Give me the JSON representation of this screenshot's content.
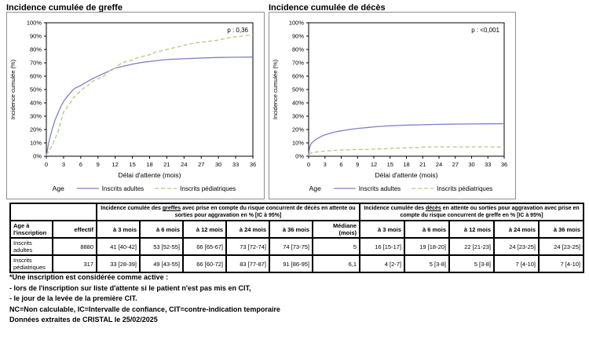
{
  "chart_data": [
    {
      "type": "line",
      "title": "Incidence cumulée de greffe",
      "p_label": "p : 0,36",
      "xlabel": "Délai d'attente (mois)",
      "ylabel": "Incidence cumulée (%)",
      "legend_title": "Age",
      "xlim": [
        0,
        36
      ],
      "ylim": [
        0,
        100
      ],
      "xticks": [
        0,
        3,
        6,
        9,
        12,
        15,
        18,
        21,
        24,
        27,
        30,
        33,
        36
      ],
      "yticks": [
        "0%",
        "10%",
        "20%",
        "30%",
        "40%",
        "50%",
        "60%",
        "70%",
        "80%",
        "90%",
        "100%"
      ],
      "grid": false,
      "legend_position": "bottom",
      "series": [
        {
          "name": "Inscrits adultes",
          "color": "#7e80c4",
          "dash": "solid",
          "points": [
            [
              0,
              0
            ],
            [
              0.2,
              5
            ],
            [
              0.4,
              10
            ],
            [
              0.7,
              15
            ],
            [
              1,
              20
            ],
            [
              1.5,
              27
            ],
            [
              2,
              32
            ],
            [
              2.5,
              37
            ],
            [
              3,
              41
            ],
            [
              3.5,
              44
            ],
            [
              4,
              46.5
            ],
            [
              4.5,
              49
            ],
            [
              5,
              51
            ],
            [
              6,
              53
            ],
            [
              7,
              55.5
            ],
            [
              8,
              58
            ],
            [
              9,
              60
            ],
            [
              10,
              62
            ],
            [
              11,
              64
            ],
            [
              12,
              66
            ],
            [
              13,
              67
            ],
            [
              14,
              68
            ],
            [
              15,
              69
            ],
            [
              16,
              69.8
            ],
            [
              17,
              70.5
            ],
            [
              18,
              71
            ],
            [
              19,
              71.5
            ],
            [
              20,
              72
            ],
            [
              21,
              72.4
            ],
            [
              22,
              72.7
            ],
            [
              23,
              72.9
            ],
            [
              24,
              73
            ],
            [
              26,
              73.4
            ],
            [
              28,
              73.7
            ],
            [
              30,
              74
            ],
            [
              33,
              74.2
            ],
            [
              36,
              74.3
            ]
          ]
        },
        {
          "name": "Inscrits pédiatriques",
          "color": "#b5c97e",
          "dash": "dashed",
          "points": [
            [
              0,
              1
            ],
            [
              0.5,
              4
            ],
            [
              1,
              8
            ],
            [
              1.3,
              11
            ],
            [
              1.6,
              14
            ],
            [
              2,
              18
            ],
            [
              2.3,
              22
            ],
            [
              2.6,
              27
            ],
            [
              3,
              33
            ],
            [
              3.4,
              35
            ],
            [
              3.8,
              38
            ],
            [
              4.2,
              40
            ],
            [
              4.6,
              43
            ],
            [
              5,
              45
            ],
            [
              5.5,
              47
            ],
            [
              6,
              49
            ],
            [
              6.5,
              51
            ],
            [
              7,
              52
            ],
            [
              7.5,
              54
            ],
            [
              8,
              56
            ],
            [
              8.5,
              57
            ],
            [
              9,
              58
            ],
            [
              9.5,
              59
            ],
            [
              10,
              60
            ],
            [
              10.5,
              62
            ],
            [
              11,
              64
            ],
            [
              11.5,
              65
            ],
            [
              12,
              66
            ],
            [
              12.5,
              68
            ],
            [
              13,
              69.5
            ],
            [
              13.5,
              70.5
            ],
            [
              14,
              71
            ],
            [
              15,
              72
            ],
            [
              15.5,
              73
            ],
            [
              16,
              74
            ],
            [
              17,
              75
            ],
            [
              18,
              76
            ],
            [
              18.5,
              77
            ],
            [
              19,
              78
            ],
            [
              20,
              79
            ],
            [
              21,
              80
            ],
            [
              22,
              81
            ],
            [
              23,
              82
            ],
            [
              24,
              83
            ],
            [
              25,
              84
            ],
            [
              26,
              85
            ],
            [
              27,
              85.5
            ],
            [
              28,
              86
            ],
            [
              29,
              86.5
            ],
            [
              30,
              87
            ],
            [
              31,
              88
            ],
            [
              32,
              89
            ],
            [
              33,
              89.5
            ],
            [
              34,
              90
            ],
            [
              35,
              90.5
            ],
            [
              36,
              91
            ]
          ]
        }
      ]
    },
    {
      "type": "line",
      "title": "Incidence cumulée de décès",
      "p_label": "p : <0,001",
      "xlabel": "Délai d'attente (mois)",
      "ylabel": "Incidence cumulée (%)",
      "legend_title": "Age",
      "xlim": [
        0,
        36
      ],
      "ylim": [
        0,
        100
      ],
      "xticks": [
        0,
        3,
        6,
        9,
        12,
        15,
        18,
        21,
        24,
        27,
        30,
        33,
        36
      ],
      "yticks": [
        "0%",
        "10%",
        "20%",
        "30%",
        "40%",
        "50%",
        "60%",
        "70%",
        "80%",
        "90%",
        "100%"
      ],
      "grid": false,
      "legend_position": "bottom",
      "series": [
        {
          "name": "Inscrits adultes",
          "color": "#7e80c4",
          "dash": "solid",
          "points": [
            [
              0,
              0
            ],
            [
              0.1,
              4
            ],
            [
              0.2,
              7
            ],
            [
              0.4,
              9
            ],
            [
              0.6,
              10
            ],
            [
              1,
              11.5
            ],
            [
              1.5,
              13
            ],
            [
              2,
              14.2
            ],
            [
              2.5,
              15.2
            ],
            [
              3,
              16
            ],
            [
              3.5,
              16.6
            ],
            [
              4,
              17.2
            ],
            [
              4.5,
              17.8
            ],
            [
              5,
              18.3
            ],
            [
              5.5,
              18.7
            ],
            [
              6,
              19
            ],
            [
              7,
              19.7
            ],
            [
              8,
              20.3
            ],
            [
              9,
              20.8
            ],
            [
              10,
              21.2
            ],
            [
              11,
              21.6
            ],
            [
              12,
              22
            ],
            [
              13,
              22.3
            ],
            [
              14,
              22.6
            ],
            [
              15,
              22.8
            ],
            [
              16,
              23
            ],
            [
              17,
              23.1
            ],
            [
              18,
              23.3
            ],
            [
              19,
              23.4
            ],
            [
              20,
              23.5
            ],
            [
              21,
              23.6
            ],
            [
              22,
              23.7
            ],
            [
              23,
              23.8
            ],
            [
              24,
              23.9
            ],
            [
              26,
              24
            ],
            [
              28,
              24.1
            ],
            [
              30,
              24.2
            ],
            [
              33,
              24.3
            ],
            [
              36,
              24.4
            ]
          ]
        },
        {
          "name": "Inscrits pédiatriques",
          "color": "#b5c97e",
          "dash": "dashed",
          "points": [
            [
              0,
              2
            ],
            [
              0.5,
              2.5
            ],
            [
              1,
              3
            ],
            [
              2,
              3.4
            ],
            [
              3,
              3.8
            ],
            [
              4,
              4.1
            ],
            [
              5,
              4.4
            ],
            [
              6,
              4.6
            ],
            [
              7,
              4.8
            ],
            [
              8,
              5
            ],
            [
              9,
              5
            ],
            [
              10,
              5.1
            ],
            [
              11,
              5.2
            ],
            [
              12,
              5.3
            ],
            [
              13,
              5.5
            ],
            [
              14,
              5.6
            ],
            [
              15,
              5.8
            ],
            [
              16,
              6
            ],
            [
              17,
              6.1
            ],
            [
              18,
              6.3
            ],
            [
              19,
              6.4
            ],
            [
              20,
              6.5
            ],
            [
              21,
              6.9
            ],
            [
              22,
              7
            ],
            [
              24,
              7
            ],
            [
              26,
              7
            ],
            [
              28,
              7
            ],
            [
              30,
              7
            ],
            [
              32,
              7
            ],
            [
              34,
              7
            ],
            [
              36,
              7
            ]
          ]
        }
      ]
    }
  ],
  "table": {
    "group1": {
      "pre": "Incidence cumulée des ",
      "u": "greffes",
      "post": " avec prise en compte du risque concurrent de décès en attente ou sorties pour aggravation en % [IC à 95%]"
    },
    "group2": {
      "pre": "Incidence cumulée des ",
      "u": "décès",
      "post": " en attente ou sorties pour aggravation avec prise en compte du risque concurrent de greffe en % [IC à 95%]"
    },
    "columns": [
      "Age à l'inscription",
      "effectif",
      "à 3 mois",
      "à 6 mois",
      "à 12 mois",
      "à 24 mois",
      "à 36 mois",
      "Médiane (mois)",
      "à 3 mois",
      "à 6 mois",
      "à 12 mois",
      "à 24 mois",
      "à 36 mois"
    ],
    "rows": [
      {
        "cells": [
          "Inscrits adultes",
          "8880",
          "41 [40-42]",
          "53 [52-55]",
          "66 [65-67]",
          "73 [72-74]",
          "74 [73-75]",
          "5",
          "16 [15-17]",
          "19 [18-20]",
          "22 [21-23]",
          "24 [23-25]",
          "24 [23-25]"
        ]
      },
      {
        "cells": [
          "Inscrits pédiatriques",
          "317",
          "33 [28-39]",
          "49 [43-55]",
          "66 [60-72]",
          "83 [77-87]",
          "91 [86-95]",
          "6,1",
          "4 [2-7]",
          "5 [3-8]",
          "5 [3-8]",
          "7 [4-10]",
          "7 [4-10]"
        ]
      }
    ]
  },
  "footnotes": [
    "*Une inscription est considérée comme active :",
    "- lors de l'inscription sur liste d'attente si le patient n'est pas mis en CIT,",
    "- le jour de la levée de la première CIT.",
    "NC=Non calculable, IC=Intervalle de confiance, CIT=contre-indication temporaire",
    "Données extraites de CRISTAL le 25/02/2025"
  ]
}
